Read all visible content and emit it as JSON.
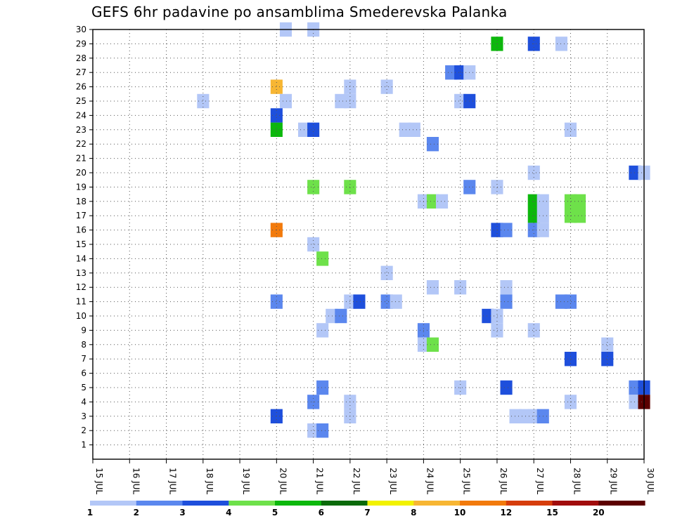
{
  "chart_data": {
    "type": "heatmap",
    "title": "GEFS 6hr padavine po ansamblima Smederevska Palanka",
    "xlabel": "",
    "ylabel": "",
    "x_ticks": [
      "15 JUL",
      "16 JUL",
      "17 JUL",
      "18 JUL",
      "19 JUL",
      "20 JUL",
      "21 JUL",
      "22 JUL",
      "23 JUL",
      "24 JUL",
      "25 JUL",
      "26 JUL",
      "27 JUL",
      "28 JUL",
      "29 JUL",
      "30 JUL"
    ],
    "x_range_days": [
      15,
      30
    ],
    "y_ticks": [
      1,
      2,
      3,
      4,
      5,
      6,
      7,
      8,
      9,
      10,
      11,
      12,
      13,
      14,
      15,
      16,
      17,
      18,
      19,
      20,
      21,
      22,
      23,
      24,
      25,
      26,
      27,
      28,
      29,
      30
    ],
    "y_range": [
      0,
      30
    ],
    "grid": true,
    "colorbar": {
      "labels": [
        "1",
        "2",
        "3",
        "4",
        "5",
        "6",
        "7",
        "8",
        "10",
        "12",
        "15",
        "20"
      ],
      "colors": [
        "#b3c7f7",
        "#5b87ee",
        "#1e4fdc",
        "#6ee14a",
        "#0cb80c",
        "#0a6a0a",
        "#f2f200",
        "#f7b633",
        "#f27a0c",
        "#d63d0c",
        "#a10c0c",
        "#5c0000"
      ]
    },
    "cells": [
      {
        "m": 30,
        "day": 20.25,
        "c": 0
      },
      {
        "m": 30,
        "day": 21.0,
        "c": 0
      },
      {
        "m": 29,
        "day": 26.0,
        "c": 4
      },
      {
        "m": 29,
        "day": 27.0,
        "c": 2
      },
      {
        "m": 29,
        "day": 27.75,
        "c": 0
      },
      {
        "m": 27,
        "day": 24.75,
        "c": 1
      },
      {
        "m": 27,
        "day": 25.0,
        "c": 2
      },
      {
        "m": 27,
        "day": 25.25,
        "c": 0
      },
      {
        "m": 26,
        "day": 20.0,
        "c": 7
      },
      {
        "m": 26,
        "day": 22.0,
        "c": 0
      },
      {
        "m": 26,
        "day": 23.0,
        "c": 0
      },
      {
        "m": 25,
        "day": 18.0,
        "c": 0
      },
      {
        "m": 25,
        "day": 20.25,
        "c": 0
      },
      {
        "m": 25,
        "day": 21.75,
        "c": 0
      },
      {
        "m": 25,
        "day": 22.0,
        "c": 0
      },
      {
        "m": 25,
        "day": 25.0,
        "c": 0
      },
      {
        "m": 25,
        "day": 25.25,
        "c": 2
      },
      {
        "m": 24,
        "day": 20.0,
        "c": 2
      },
      {
        "m": 23,
        "day": 20.0,
        "c": 4
      },
      {
        "m": 23,
        "day": 20.75,
        "c": 0
      },
      {
        "m": 23,
        "day": 21.0,
        "c": 2
      },
      {
        "m": 23,
        "day": 23.5,
        "c": 0
      },
      {
        "m": 23,
        "day": 23.75,
        "c": 0
      },
      {
        "m": 23,
        "day": 28.0,
        "c": 0
      },
      {
        "m": 22,
        "day": 24.25,
        "c": 1
      },
      {
        "m": 20,
        "day": 27.0,
        "c": 0
      },
      {
        "m": 20,
        "day": 29.75,
        "c": 2
      },
      {
        "m": 20,
        "day": 30.0,
        "c": 0
      },
      {
        "m": 19,
        "day": 21.0,
        "c": 3
      },
      {
        "m": 19,
        "day": 22.0,
        "c": 3
      },
      {
        "m": 19,
        "day": 25.25,
        "c": 1
      },
      {
        "m": 19,
        "day": 26.0,
        "c": 0
      },
      {
        "m": 18,
        "day": 24.0,
        "c": 0
      },
      {
        "m": 18,
        "day": 24.25,
        "c": 3
      },
      {
        "m": 18,
        "day": 24.5,
        "c": 0
      },
      {
        "m": 18,
        "day": 27.0,
        "c": 4
      },
      {
        "m": 18,
        "day": 27.25,
        "c": 0
      },
      {
        "m": 18,
        "day": 28.0,
        "c": 3
      },
      {
        "m": 18,
        "day": 28.25,
        "c": 3
      },
      {
        "m": 17,
        "day": 27.0,
        "c": 4
      },
      {
        "m": 17,
        "day": 27.25,
        "c": 0
      },
      {
        "m": 17,
        "day": 28.0,
        "c": 3
      },
      {
        "m": 17,
        "day": 28.25,
        "c": 3
      },
      {
        "m": 16,
        "day": 20.0,
        "c": 8
      },
      {
        "m": 16,
        "day": 26.0,
        "c": 2
      },
      {
        "m": 16,
        "day": 26.25,
        "c": 1
      },
      {
        "m": 16,
        "day": 27.0,
        "c": 1
      },
      {
        "m": 16,
        "day": 27.25,
        "c": 0
      },
      {
        "m": 15,
        "day": 21.0,
        "c": 0
      },
      {
        "m": 14,
        "day": 21.25,
        "c": 3
      },
      {
        "m": 13,
        "day": 23.0,
        "c": 0
      },
      {
        "m": 12,
        "day": 24.25,
        "c": 0
      },
      {
        "m": 12,
        "day": 25.0,
        "c": 0
      },
      {
        "m": 12,
        "day": 26.25,
        "c": 0
      },
      {
        "m": 11,
        "day": 20.0,
        "c": 1
      },
      {
        "m": 11,
        "day": 22.0,
        "c": 0
      },
      {
        "m": 11,
        "day": 22.25,
        "c": 2
      },
      {
        "m": 11,
        "day": 23.0,
        "c": 1
      },
      {
        "m": 11,
        "day": 23.25,
        "c": 0
      },
      {
        "m": 11,
        "day": 26.25,
        "c": 1
      },
      {
        "m": 11,
        "day": 27.75,
        "c": 1
      },
      {
        "m": 11,
        "day": 28.0,
        "c": 1
      },
      {
        "m": 10,
        "day": 21.5,
        "c": 0
      },
      {
        "m": 10,
        "day": 21.75,
        "c": 1
      },
      {
        "m": 10,
        "day": 25.75,
        "c": 2
      },
      {
        "m": 10,
        "day": 26.0,
        "c": 0
      },
      {
        "m": 9,
        "day": 21.25,
        "c": 0
      },
      {
        "m": 9,
        "day": 24.0,
        "c": 1
      },
      {
        "m": 9,
        "day": 26.0,
        "c": 0
      },
      {
        "m": 9,
        "day": 27.0,
        "c": 0
      },
      {
        "m": 8,
        "day": 24.0,
        "c": 0
      },
      {
        "m": 8,
        "day": 24.25,
        "c": 3
      },
      {
        "m": 8,
        "day": 29.0,
        "c": 0
      },
      {
        "m": 7,
        "day": 28.0,
        "c": 2
      },
      {
        "m": 7,
        "day": 29.0,
        "c": 2
      },
      {
        "m": 5,
        "day": 21.25,
        "c": 1
      },
      {
        "m": 5,
        "day": 25.0,
        "c": 0
      },
      {
        "m": 5,
        "day": 26.25,
        "c": 2
      },
      {
        "m": 5,
        "day": 29.75,
        "c": 1
      },
      {
        "m": 5,
        "day": 30.0,
        "c": 2
      },
      {
        "m": 4,
        "day": 21.0,
        "c": 1
      },
      {
        "m": 4,
        "day": 22.0,
        "c": 0
      },
      {
        "m": 4,
        "day": 28.0,
        "c": 0
      },
      {
        "m": 4,
        "day": 29.75,
        "c": 0
      },
      {
        "m": 4,
        "day": 30.0,
        "c": 11
      },
      {
        "m": 3,
        "day": 20.0,
        "c": 2
      },
      {
        "m": 3,
        "day": 22.0,
        "c": 0
      },
      {
        "m": 3,
        "day": 26.5,
        "c": 0
      },
      {
        "m": 3,
        "day": 26.75,
        "c": 0
      },
      {
        "m": 3,
        "day": 27.0,
        "c": 0
      },
      {
        "m": 3,
        "day": 27.25,
        "c": 1
      },
      {
        "m": 2,
        "day": 21.0,
        "c": 0
      },
      {
        "m": 2,
        "day": 21.25,
        "c": 1
      }
    ]
  }
}
